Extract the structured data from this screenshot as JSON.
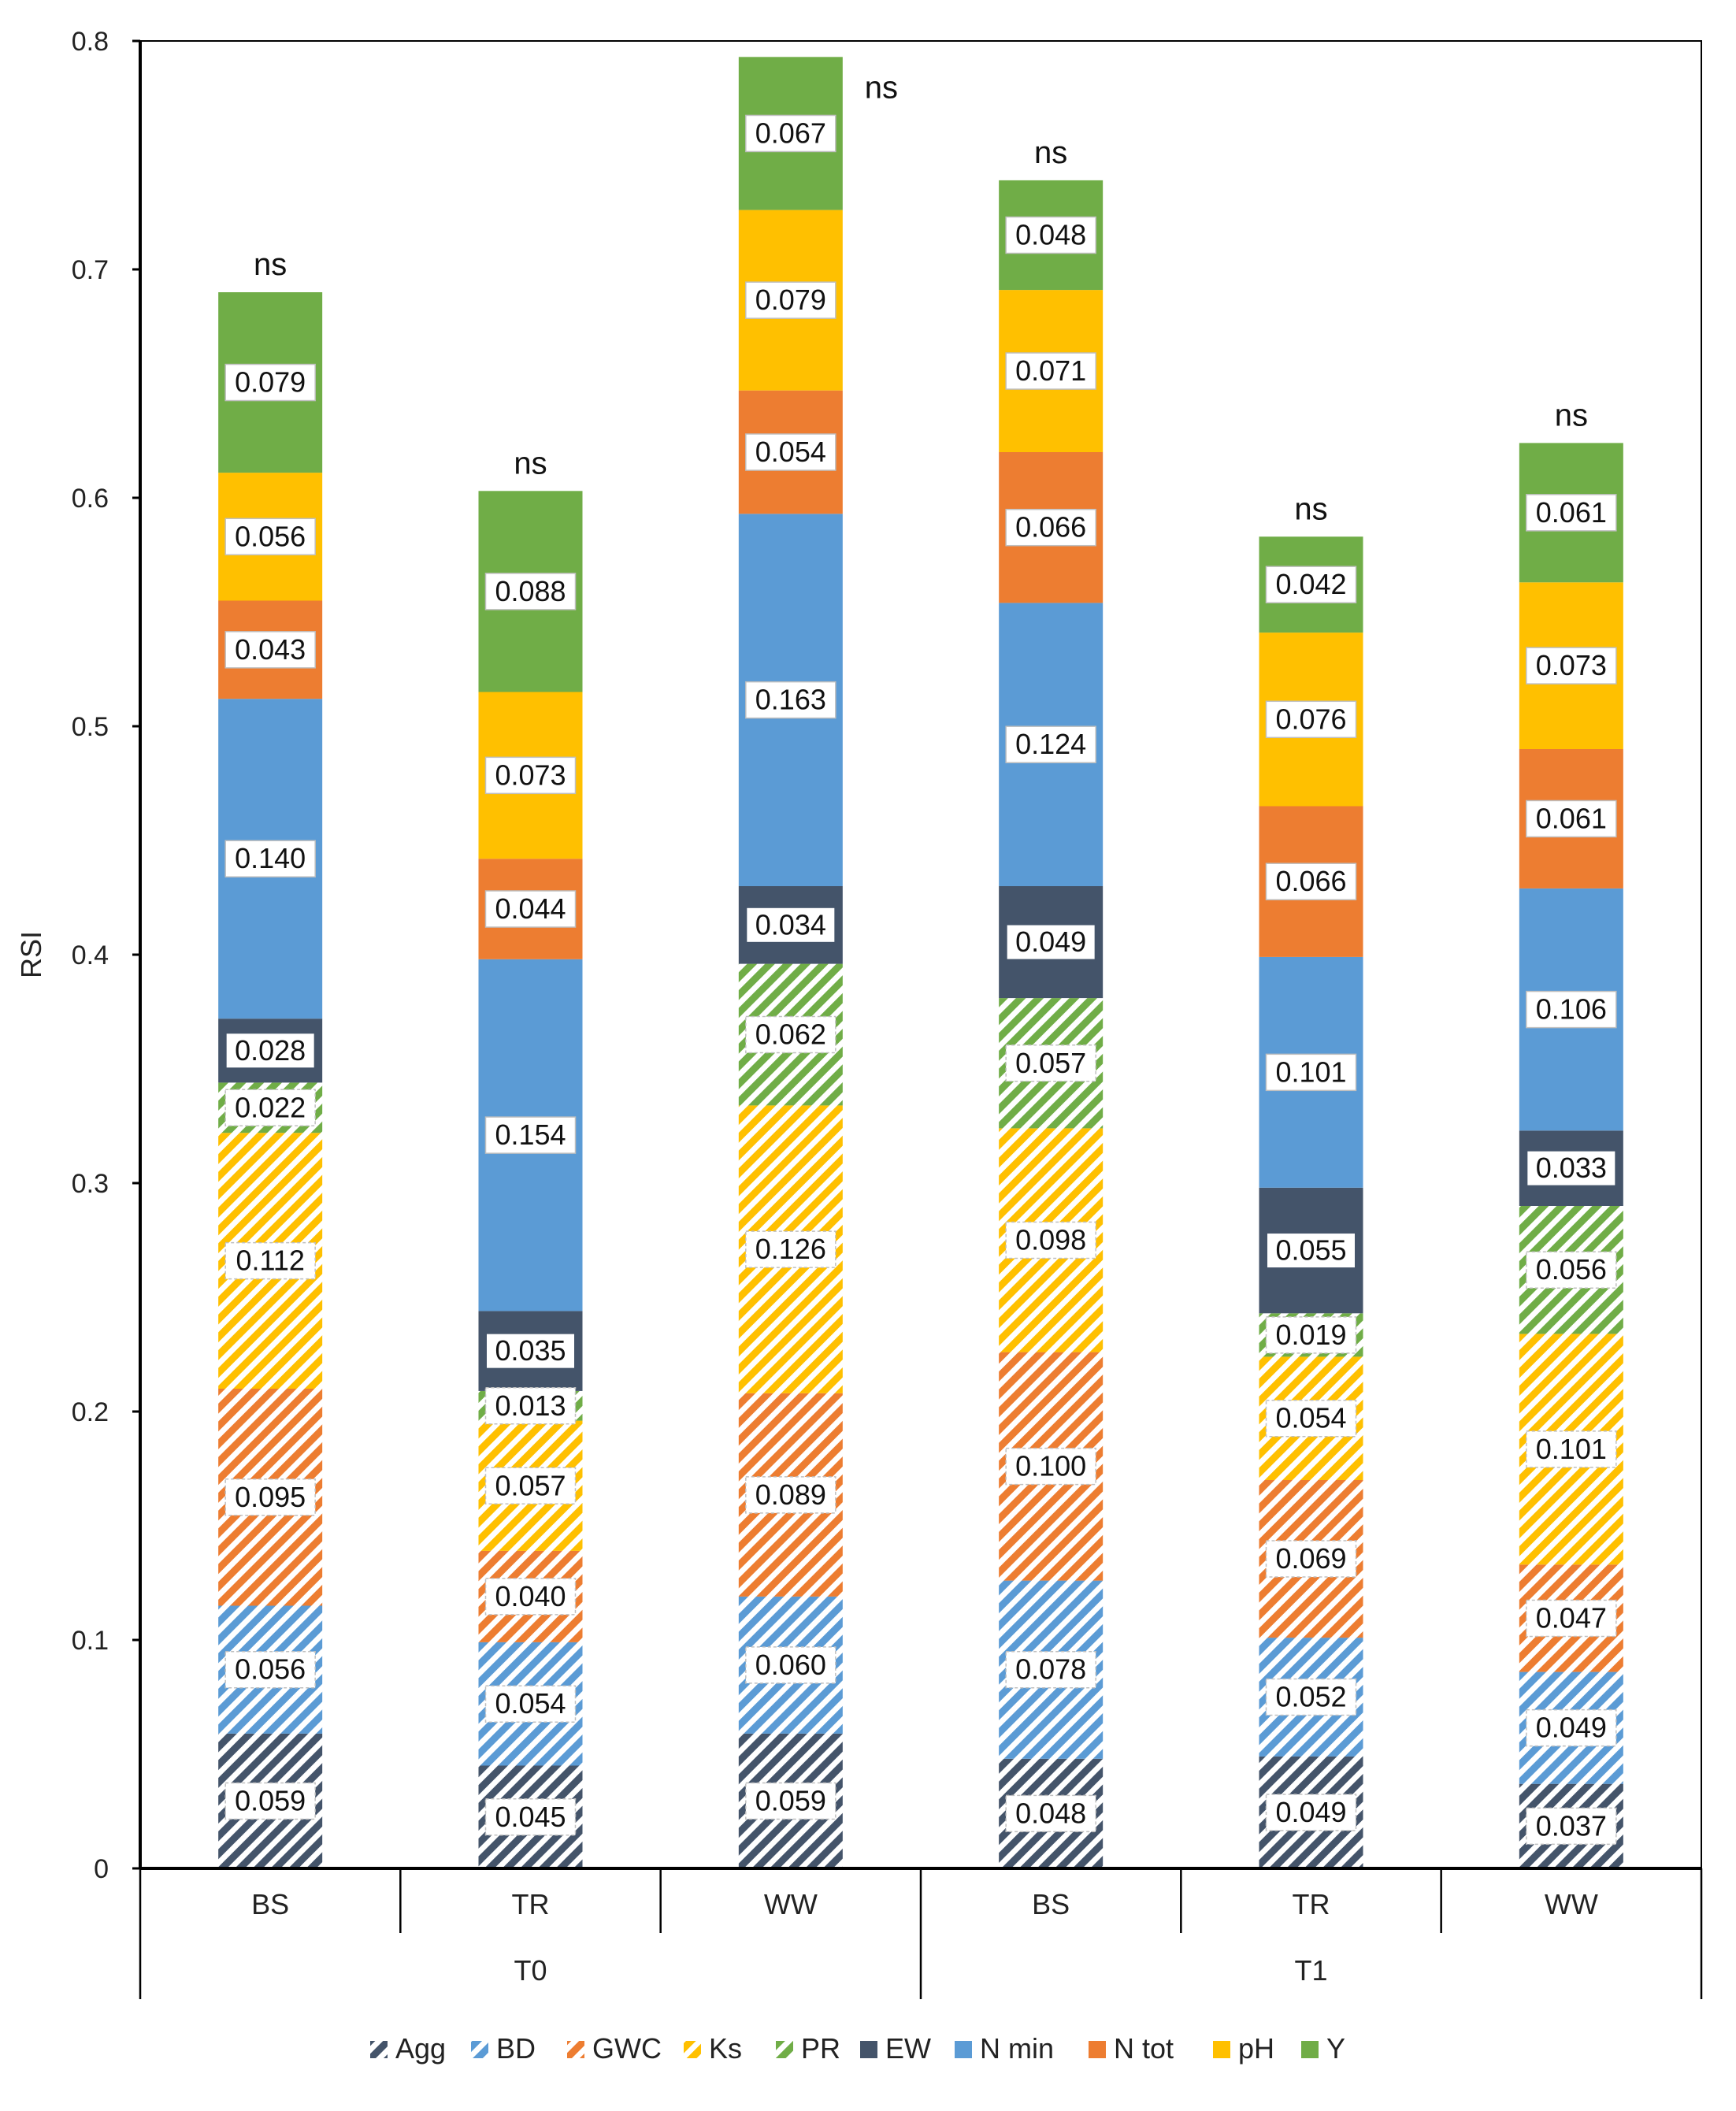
{
  "chart_data": {
    "type": "bar",
    "subtype": "stacked",
    "title": "",
    "xlabel": "",
    "ylabel": "RSI",
    "ylim": [
      0,
      0.8
    ],
    "yticks": [
      "0",
      "0.1",
      "0.2",
      "0.3",
      "0.4",
      "0.5",
      "0.6",
      "0.7",
      "0.8"
    ],
    "categories": [
      "BS",
      "TR",
      "WW",
      "BS",
      "TR",
      "WW"
    ],
    "groups": [
      {
        "label": "T0",
        "categories": [
          "BS",
          "TR",
          "WW"
        ]
      },
      {
        "label": "T1",
        "categories": [
          "BS",
          "TR",
          "WW"
        ]
      }
    ],
    "significance": [
      "ns",
      "ns",
      "ns",
      "ns",
      "ns",
      "ns"
    ],
    "series": [
      {
        "name": "Agg",
        "color": "#44546a",
        "pattern": "hatch",
        "values": [
          0.059,
          0.045,
          0.059,
          0.048,
          0.049,
          0.037
        ],
        "labels": [
          "0.059",
          "0.045",
          "0.059",
          "0.048",
          "0.049",
          "0.037"
        ]
      },
      {
        "name": "BD",
        "color": "#5b9bd5",
        "pattern": "hatch",
        "values": [
          0.056,
          0.054,
          0.06,
          0.078,
          0.052,
          0.049
        ],
        "labels": [
          "0.056",
          "0.054",
          "0.060",
          "0.078",
          "0.052",
          "0.049"
        ]
      },
      {
        "name": "GWC",
        "color": "#ed7d31",
        "pattern": "hatch",
        "values": [
          0.095,
          0.04,
          0.089,
          0.1,
          0.069,
          0.047
        ],
        "labels": [
          "0.095",
          "0.040",
          "0.089",
          "0.100",
          "0.069",
          "0.047"
        ]
      },
      {
        "name": "Ks",
        "color": "#ffc000",
        "pattern": "hatch",
        "values": [
          0.112,
          0.057,
          0.126,
          0.098,
          0.054,
          0.101
        ],
        "labels": [
          "0.112",
          "0.057",
          "0.126",
          "0.098",
          "0.054",
          "0.101"
        ]
      },
      {
        "name": "PR",
        "color": "#70ad47",
        "pattern": "hatch",
        "values": [
          0.022,
          0.013,
          0.062,
          0.057,
          0.019,
          0.056
        ],
        "labels": [
          "0.022",
          "0.013",
          "0.062",
          "0.057",
          "0.019",
          "0.056"
        ]
      },
      {
        "name": "EW",
        "color": "#44546a",
        "pattern": "solid",
        "values": [
          0.028,
          0.035,
          0.034,
          0.049,
          0.055,
          0.033
        ],
        "labels": [
          "0.028",
          "0.035",
          "0.034",
          "0.049",
          "0.055",
          "0.033"
        ]
      },
      {
        "name": "N min",
        "color": "#5b9bd5",
        "pattern": "solid",
        "values": [
          0.14,
          0.154,
          0.163,
          0.124,
          0.101,
          0.106
        ],
        "labels": [
          "0.140",
          "0.154",
          "0.163",
          "0.124",
          "0.101",
          "0.106"
        ]
      },
      {
        "name": "N tot",
        "color": "#ed7d31",
        "pattern": "solid",
        "values": [
          0.043,
          0.044,
          0.054,
          0.066,
          0.066,
          0.061
        ],
        "labels": [
          "0.043",
          "0.044",
          "0.054",
          "0.066",
          "0.066",
          "0.061"
        ]
      },
      {
        "name": "pH",
        "color": "#ffc000",
        "pattern": "solid",
        "values": [
          0.056,
          0.073,
          0.079,
          0.071,
          0.076,
          0.073
        ],
        "labels": [
          "0.056",
          "0.073",
          "0.079",
          "0.071",
          "0.076",
          "0.073"
        ]
      },
      {
        "name": "Y",
        "color": "#70ad47",
        "pattern": "solid",
        "values": [
          0.079,
          0.088,
          0.067,
          0.048,
          0.042,
          0.061
        ],
        "labels": [
          "0.079",
          "0.088",
          "0.067",
          "0.048",
          "0.042",
          "0.061"
        ]
      }
    ],
    "legend": {
      "position": "bottom",
      "entries": [
        "Agg",
        "BD",
        "GWC",
        "Ks",
        "PR",
        "EW",
        "N min",
        "N tot",
        "pH",
        "Y"
      ]
    },
    "grid": false
  }
}
